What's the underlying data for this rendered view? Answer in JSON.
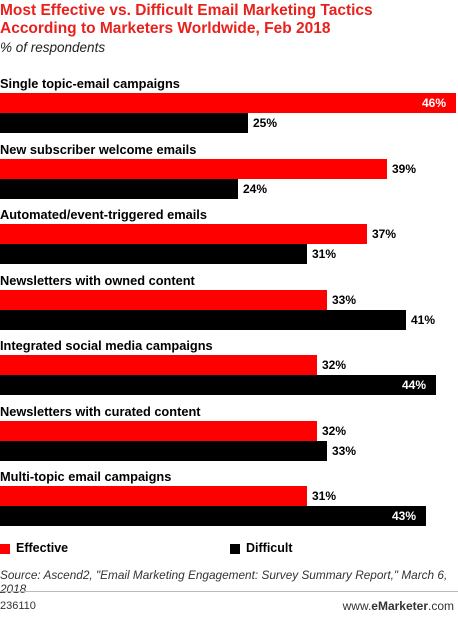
{
  "title": "Most Effective vs. Difficult Email Marketing Tactics According to Marketers Worldwide, Feb 2018",
  "subtitle": "% of respondents",
  "chart_data": {
    "type": "bar",
    "orientation": "horizontal",
    "categories": [
      "Single topic-email campaigns",
      "New subscriber welcome emails",
      "Automated/event-triggered emails",
      "Newsletters with owned content",
      "Integrated social media campaigns",
      "Newsletters with curated content",
      "Multi-topic email campaigns"
    ],
    "series": [
      {
        "name": "Effective",
        "color": "#ff0000",
        "values": [
          46,
          39,
          37,
          33,
          32,
          32,
          31
        ]
      },
      {
        "name": "Difficult",
        "color": "#000000",
        "values": [
          25,
          24,
          31,
          41,
          44,
          33,
          43
        ]
      }
    ],
    "value_labels": {
      "Effective": [
        "46%",
        "39%",
        "37%",
        "33%",
        "32%",
        "32%",
        "31%"
      ],
      "Difficult": [
        "25%",
        "24%",
        "31%",
        "41%",
        "44%",
        "33%",
        "43%"
      ]
    },
    "xlim": [
      0,
      46
    ],
    "legend_position": "bottom"
  },
  "legend": {
    "effective": "Effective",
    "difficult": "Difficult"
  },
  "source": "Source: Ascend2, \"Email Marketing Engagement: Survey Summary Report,\" March 6, 2018",
  "chart_id": "236110",
  "brand": {
    "prefix": "www.",
    "name": "eMarketer",
    "suffix": ".com"
  }
}
